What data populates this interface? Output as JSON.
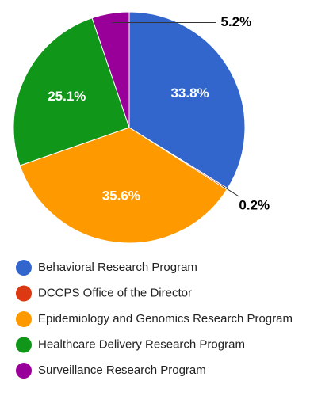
{
  "chart_data": {
    "type": "pie",
    "categories": [
      "Behavioral Research Program",
      "DCCPS Office of the Director",
      "Epidemiology and Genomics Research Program",
      "Healthcare Delivery Research Program",
      "Surveillance Research Program"
    ],
    "values": [
      33.8,
      0.2,
      35.6,
      25.1,
      5.2
    ],
    "value_labels": [
      "33.8%",
      "0.2%",
      "35.6%",
      "25.1%",
      "5.2%"
    ],
    "colors": [
      "#3366cc",
      "#dc3912",
      "#ff9900",
      "#109618",
      "#990099"
    ]
  }
}
